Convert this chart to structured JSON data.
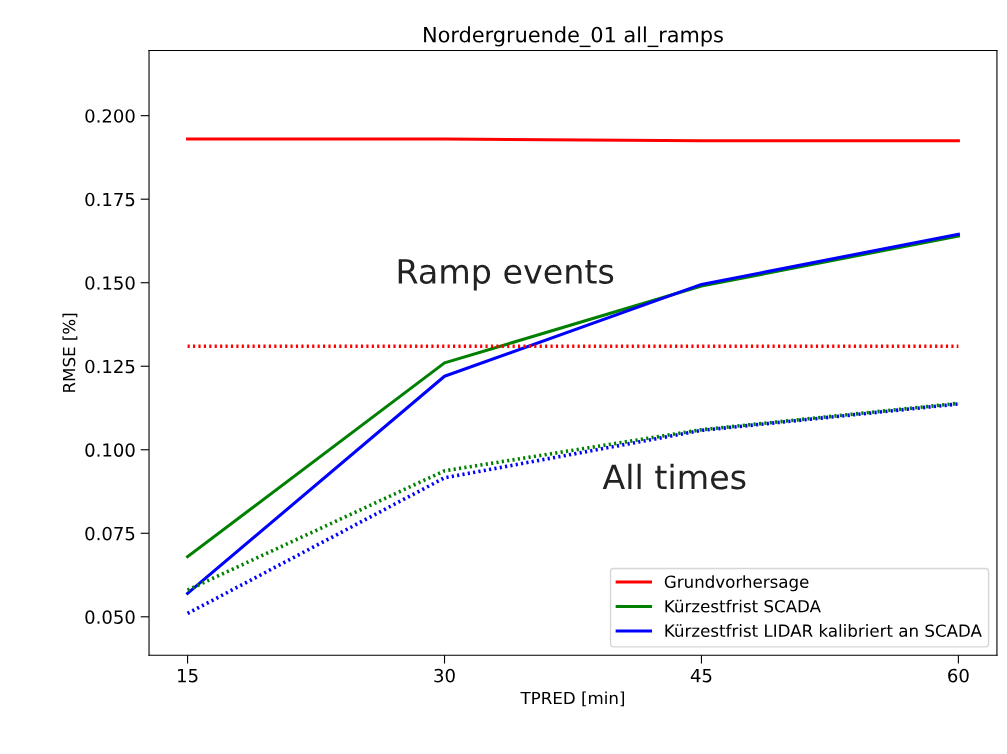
{
  "chart_data": {
    "type": "line",
    "title": "Nordergruende_01 all_ramps",
    "xlabel": "TPRED [min]",
    "ylabel": "RMSE [%]",
    "x": [
      15,
      30,
      45,
      60
    ],
    "series": [
      {
        "name": "Grundvorhersage",
        "color": "#ff0000",
        "line_style": "solid",
        "values": [
          0.193,
          0.193,
          0.1925,
          0.1925
        ]
      },
      {
        "name": "Kürzestfrist SCADA",
        "color": "#008000",
        "line_style": "solid",
        "values": [
          0.068,
          0.126,
          0.149,
          0.164
        ]
      },
      {
        "name": "Kürzestfrist LIDAR kalibriert an SCADA",
        "color": "#0000ff",
        "line_style": "solid",
        "values": [
          0.057,
          0.122,
          0.1495,
          0.1645
        ]
      },
      {
        "color": "#ff0000",
        "line_style": "dotted",
        "values": [
          0.131,
          0.131,
          0.131,
          0.131
        ]
      },
      {
        "color": "#008000",
        "line_style": "dotted",
        "values": [
          0.058,
          0.0937,
          0.106,
          0.1139
        ]
      },
      {
        "color": "#0000ff",
        "line_style": "dotted",
        "values": [
          0.051,
          0.0916,
          0.1058,
          0.1137
        ]
      }
    ],
    "annotations": [
      "Ramp events",
      "All times"
    ],
    "xlim": [
      12.75,
      62.25
    ],
    "xticks": [
      15,
      30,
      45,
      60
    ],
    "ylim": [
      0.0385,
      0.2195
    ],
    "yticks": [
      {
        "value": 0.05,
        "label": "0.050"
      },
      {
        "value": 0.075,
        "label": "0.075"
      },
      {
        "value": 0.1,
        "label": "0.100"
      },
      {
        "value": 0.125,
        "label": "0.125"
      },
      {
        "value": 0.15,
        "label": "0.150"
      },
      {
        "value": 0.175,
        "label": "0.175"
      },
      {
        "value": 0.2,
        "label": "0.200"
      }
    ],
    "grid": false,
    "legend": "lower right",
    "marker": "none"
  }
}
